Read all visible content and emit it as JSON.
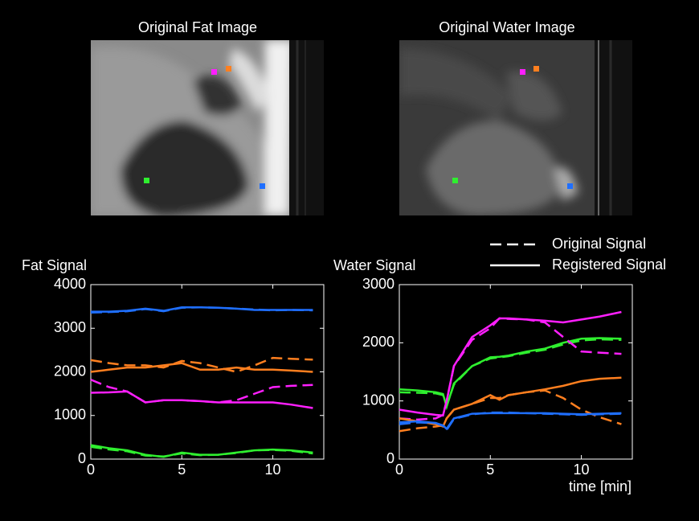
{
  "images": [
    {
      "title": "Original Fat Image"
    },
    {
      "title": "Original Water Image"
    }
  ],
  "chart_data": [
    {
      "type": "line",
      "title": "Fat Signal",
      "x": [
        0,
        1,
        2,
        3,
        4,
        5,
        6,
        7,
        8,
        9,
        10,
        11,
        12.2
      ],
      "xlim": [
        0,
        12.8
      ],
      "xticks": [
        0,
        5,
        10
      ],
      "ylim": [
        0,
        4000
      ],
      "yticks": [
        0,
        1000,
        2000,
        3000,
        4000
      ],
      "series": [
        {
          "color": "#1f6fff",
          "dash": "solid",
          "values": [
            3380,
            3380,
            3400,
            3450,
            3400,
            3480,
            3480,
            3470,
            3450,
            3420,
            3420,
            3420,
            3420
          ]
        },
        {
          "color": "#1f6fff",
          "dash": "dashed",
          "values": [
            3360,
            3370,
            3390,
            3440,
            3390,
            3470,
            3480,
            3470,
            3450,
            3430,
            3410,
            3420,
            3410
          ]
        },
        {
          "color": "#ff7f1f",
          "dash": "solid",
          "values": [
            2000,
            2050,
            2100,
            2100,
            2150,
            2200,
            2050,
            2050,
            2100,
            2050,
            2050,
            2030,
            2000
          ]
        },
        {
          "color": "#ff7f1f",
          "dash": "dashed",
          "values": [
            2270,
            2200,
            2150,
            2150,
            2100,
            2250,
            2200,
            2100,
            2000,
            2150,
            2320,
            2300,
            2280
          ]
        },
        {
          "color": "#ff1fff",
          "dash": "solid",
          "values": [
            1520,
            1530,
            1550,
            1300,
            1350,
            1350,
            1330,
            1300,
            1300,
            1300,
            1300,
            1250,
            1170
          ]
        },
        {
          "color": "#ff1fff",
          "dash": "dashed",
          "values": [
            1820,
            1650,
            1550,
            1300,
            1350,
            1350,
            1330,
            1300,
            1350,
            1500,
            1650,
            1680,
            1700
          ]
        },
        {
          "color": "#2fef2f",
          "dash": "solid",
          "values": [
            320,
            250,
            200,
            100,
            50,
            150,
            100,
            100,
            150,
            200,
            220,
            200,
            150
          ]
        },
        {
          "color": "#2fef2f",
          "dash": "dashed",
          "values": [
            280,
            220,
            180,
            80,
            60,
            130,
            90,
            100,
            140,
            200,
            210,
            190,
            130
          ]
        }
      ]
    },
    {
      "type": "line",
      "title": "Water Signal",
      "xlabel": "time [min]",
      "x": [
        0,
        1,
        2,
        2.4,
        2.6,
        3,
        4,
        5,
        5.5,
        6,
        7,
        8,
        9,
        10,
        11,
        12.2
      ],
      "xlim": [
        0,
        12.8
      ],
      "xticks": [
        0,
        5,
        10
      ],
      "ylim": [
        0,
        3000
      ],
      "yticks": [
        0,
        1000,
        2000,
        3000
      ],
      "legend": [
        {
          "label": "Original Signal",
          "dash": "dashed"
        },
        {
          "label": "Registered Signal",
          "dash": "solid"
        }
      ],
      "series": [
        {
          "color": "#2fef2f",
          "dash": "solid",
          "values": [
            1200,
            1180,
            1150,
            1120,
            900,
            1300,
            1600,
            1750,
            1760,
            1780,
            1850,
            1900,
            2000,
            2070,
            2080,
            2070
          ]
        },
        {
          "color": "#2fef2f",
          "dash": "dashed",
          "values": [
            1150,
            1140,
            1130,
            1100,
            920,
            1280,
            1600,
            1730,
            1750,
            1770,
            1830,
            1880,
            1970,
            2040,
            2060,
            2050
          ]
        },
        {
          "color": "#ff1fff",
          "dash": "solid",
          "values": [
            850,
            800,
            760,
            750,
            1000,
            1600,
            2100,
            2300,
            2420,
            2420,
            2400,
            2380,
            2350,
            2400,
            2450,
            2530
          ]
        },
        {
          "color": "#ff1fff",
          "dash": "dashed",
          "values": [
            700,
            680,
            700,
            760,
            1000,
            1600,
            2050,
            2250,
            2420,
            2410,
            2400,
            2350,
            2100,
            1850,
            1830,
            1810
          ]
        },
        {
          "color": "#ff7f1f",
          "dash": "solid",
          "values": [
            700,
            650,
            600,
            560,
            700,
            850,
            950,
            1100,
            1020,
            1100,
            1150,
            1200,
            1260,
            1340,
            1380,
            1400
          ]
        },
        {
          "color": "#ff7f1f",
          "dash": "dashed",
          "values": [
            480,
            530,
            560,
            580,
            700,
            850,
            950,
            1050,
            1050,
            1100,
            1150,
            1180,
            1050,
            850,
            720,
            600
          ]
        },
        {
          "color": "#1f6fff",
          "dash": "solid",
          "values": [
            630,
            650,
            620,
            580,
            520,
            700,
            780,
            790,
            790,
            790,
            790,
            790,
            780,
            770,
            780,
            790
          ]
        },
        {
          "color": "#1f6fff",
          "dash": "dashed",
          "values": [
            600,
            630,
            620,
            570,
            500,
            690,
            770,
            800,
            800,
            800,
            790,
            780,
            770,
            760,
            770,
            780
          ]
        }
      ]
    }
  ]
}
